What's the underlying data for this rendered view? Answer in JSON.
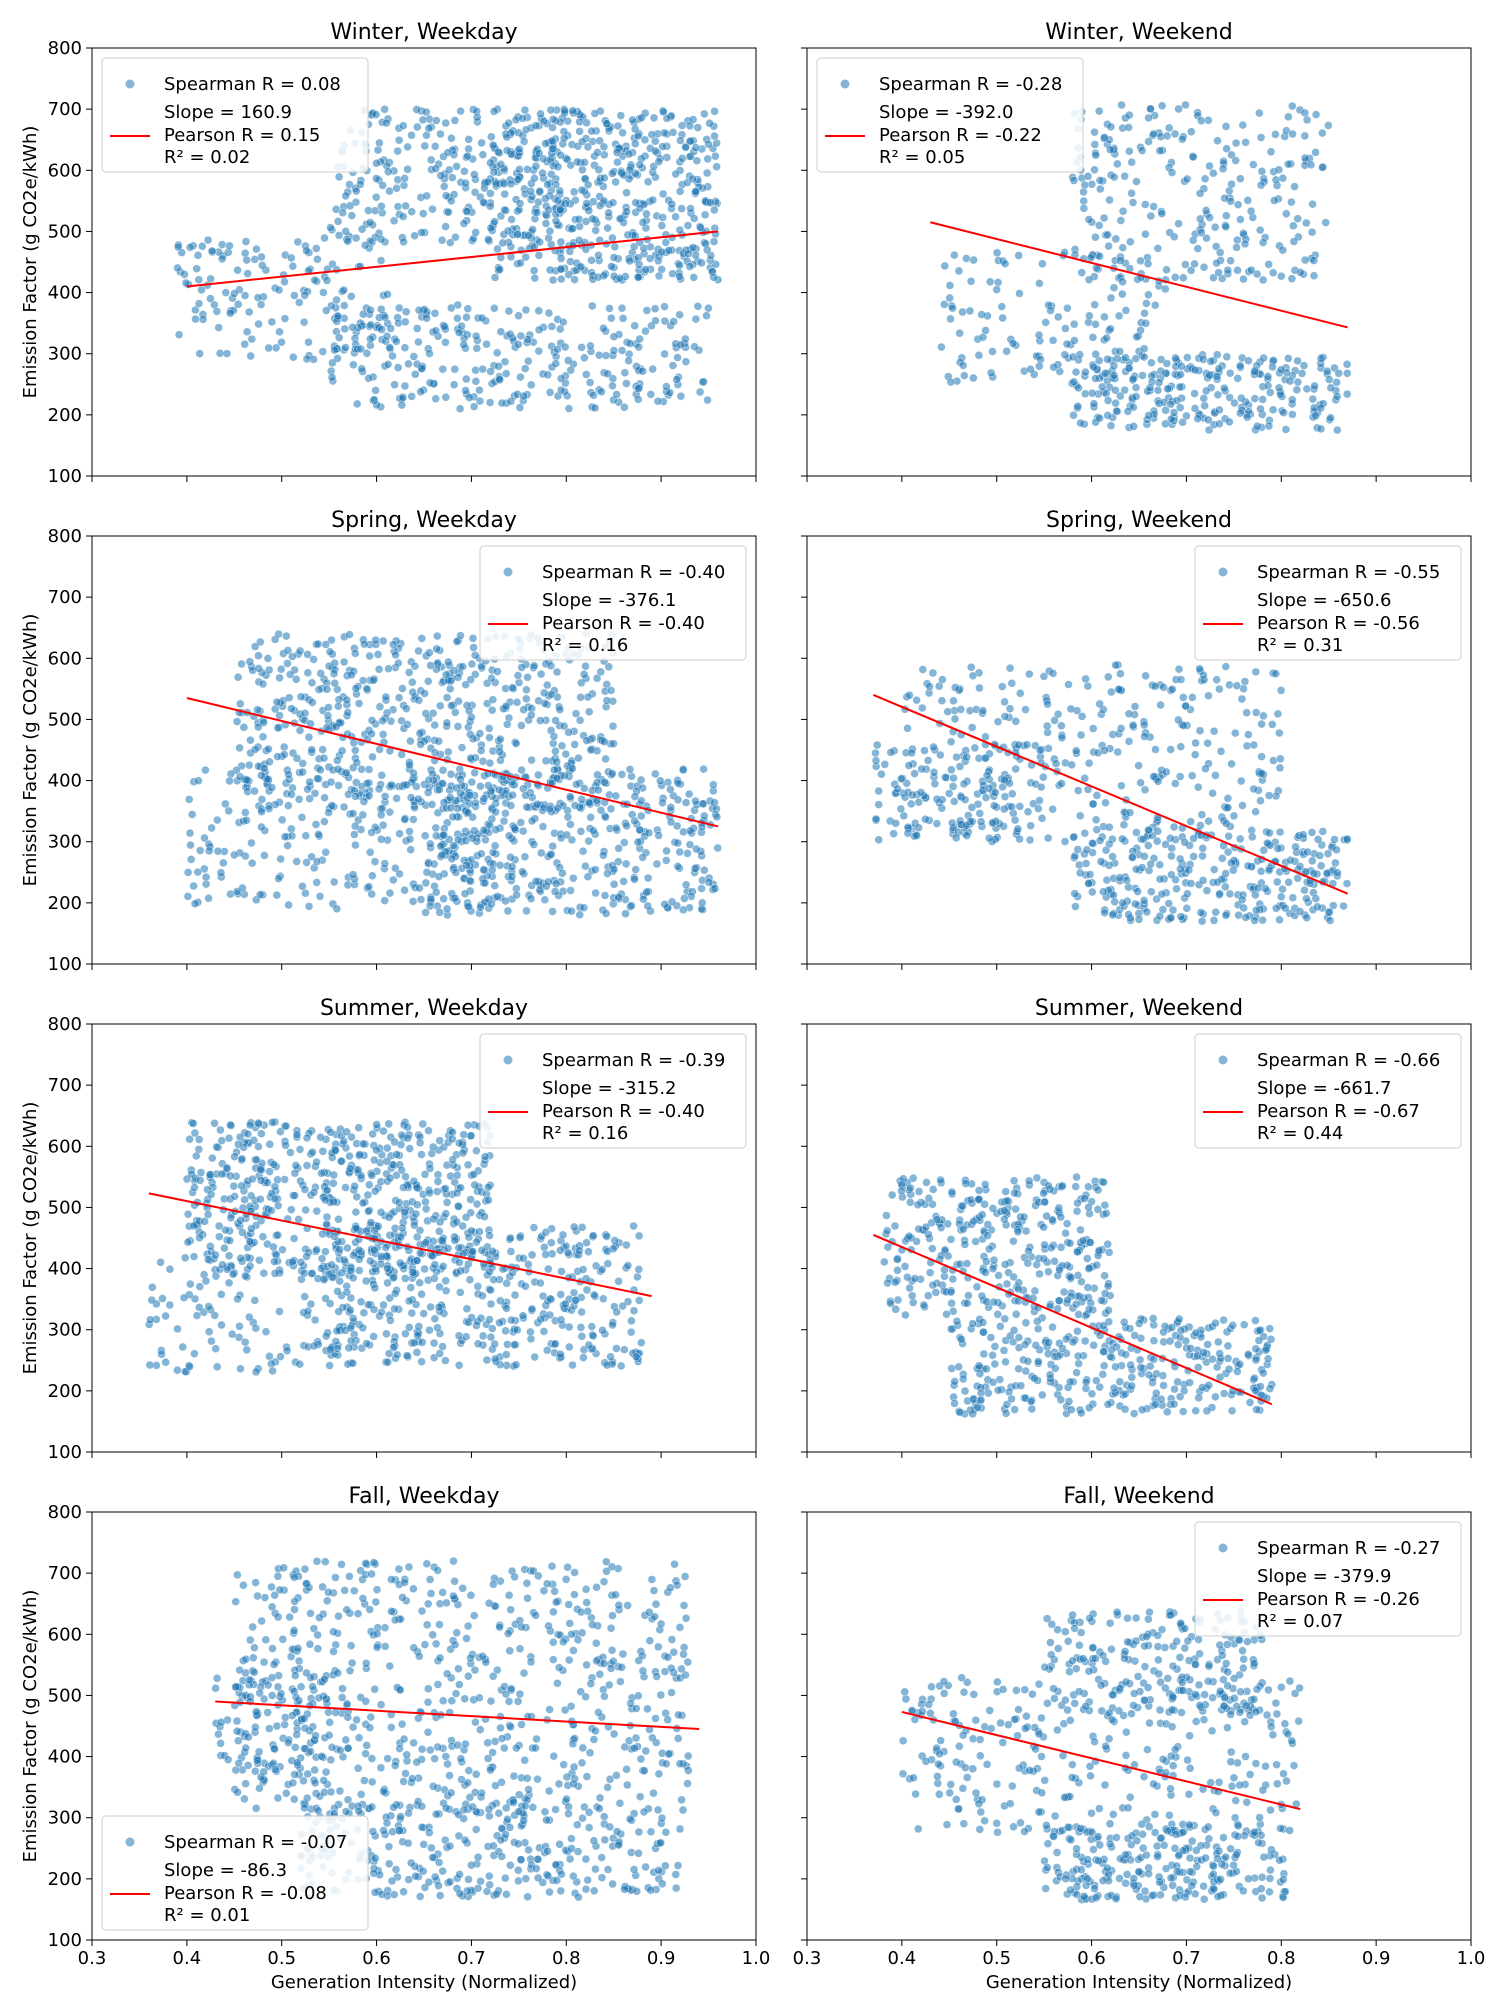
{
  "figure": {
    "xlabel": "Generation Intensity (Normalized)",
    "ylabel": "Emission Factor (g CO2e/kWh)",
    "x_ticks": [
      "0.3",
      "0.4",
      "0.5",
      "0.6",
      "0.7",
      "0.8",
      "0.9",
      "1.0"
    ],
    "y_ticks": [
      "100",
      "200",
      "300",
      "400",
      "500",
      "600",
      "700",
      "800"
    ],
    "colors": {
      "scatter": "#1f77b4",
      "fit": "#ff0000"
    }
  },
  "chart_data": [
    {
      "type": "scatter",
      "title": "Winter, Weekday",
      "xlim": [
        0.3,
        1.0
      ],
      "ylim": [
        100,
        800
      ],
      "legend": {
        "placement": "top-left",
        "spearman": "Spearman R = 0.08",
        "slope": "Slope = 160.9",
        "pearson": "Pearson R = 0.15",
        "r2": "R² = 0.02"
      },
      "fit": {
        "x": [
          0.4,
          0.96
        ],
        "y": [
          410,
          500
        ]
      },
      "point_clouds": [
        {
          "x_range": [
            0.72,
            0.96
          ],
          "y_range": [
            420,
            700
          ],
          "n": 500
        },
        {
          "x_range": [
            0.55,
            0.8
          ],
          "y_range": [
            480,
            700
          ],
          "n": 250
        },
        {
          "x_range": [
            0.55,
            0.95
          ],
          "y_range": [
            210,
            380
          ],
          "n": 300
        },
        {
          "x_range": [
            0.39,
            0.62
          ],
          "y_range": [
            290,
            490
          ],
          "n": 150
        }
      ]
    },
    {
      "type": "scatter",
      "title": "Winter, Weekend",
      "xlim": [
        0.3,
        1.0
      ],
      "ylim": [
        100,
        800
      ],
      "legend": {
        "placement": "top-left",
        "spearman": "Spearman R = -0.28",
        "slope": "Slope = -392.0",
        "pearson": "Pearson R = -0.22",
        "r2": "R² = 0.05"
      },
      "fit": {
        "x": [
          0.43,
          0.87
        ],
        "y": [
          515,
          343
        ]
      },
      "point_clouds": [
        {
          "x_range": [
            0.58,
            0.85
          ],
          "y_range": [
            420,
            710
          ],
          "n": 260
        },
        {
          "x_range": [
            0.44,
            0.68
          ],
          "y_range": [
            250,
            470
          ],
          "n": 140
        },
        {
          "x_range": [
            0.58,
            0.87
          ],
          "y_range": [
            175,
            300
          ],
          "n": 260
        }
      ]
    },
    {
      "type": "scatter",
      "title": "Spring, Weekday",
      "xlim": [
        0.3,
        1.0
      ],
      "ylim": [
        100,
        800
      ],
      "legend": {
        "placement": "top-right",
        "spearman": "Spearman R = -0.40",
        "slope": "Slope = -376.1",
        "pearson": "Pearson R = -0.40",
        "r2": "R² = 0.16"
      },
      "fit": {
        "x": [
          0.4,
          0.96
        ],
        "y": [
          535,
          325
        ]
      },
      "point_clouds": [
        {
          "x_range": [
            0.45,
            0.85
          ],
          "y_range": [
            350,
            640
          ],
          "n": 600
        },
        {
          "x_range": [
            0.65,
            0.96
          ],
          "y_range": [
            180,
            420
          ],
          "n": 400
        },
        {
          "x_range": [
            0.4,
            0.75
          ],
          "y_range": [
            190,
            420
          ],
          "n": 250
        }
      ]
    },
    {
      "type": "scatter",
      "title": "Spring, Weekend",
      "xlim": [
        0.3,
        1.0
      ],
      "ylim": [
        100,
        800
      ],
      "legend": {
        "placement": "top-right",
        "spearman": "Spearman R = -0.55",
        "slope": "Slope = -650.6",
        "pearson": "Pearson R = -0.56",
        "r2": "R² = 0.31"
      },
      "fit": {
        "x": [
          0.37,
          0.87
        ],
        "y": [
          540,
          215
        ]
      },
      "point_clouds": [
        {
          "x_range": [
            0.4,
            0.8
          ],
          "y_range": [
            300,
            590
          ],
          "n": 350
        },
        {
          "x_range": [
            0.58,
            0.87
          ],
          "y_range": [
            170,
            320
          ],
          "n": 300
        },
        {
          "x_range": [
            0.37,
            0.55
          ],
          "y_range": [
            300,
            460
          ],
          "n": 100
        }
      ]
    },
    {
      "type": "scatter",
      "title": "Summer, Weekday",
      "xlim": [
        0.3,
        1.0
      ],
      "ylim": [
        100,
        800
      ],
      "legend": {
        "placement": "top-right",
        "spearman": "Spearman R = -0.39",
        "slope": "Slope = -315.2",
        "pearson": "Pearson R = -0.40",
        "r2": "R² = 0.16"
      },
      "fit": {
        "x": [
          0.36,
          0.89
        ],
        "y": [
          523,
          355
        ]
      },
      "point_clouds": [
        {
          "x_range": [
            0.4,
            0.72
          ],
          "y_range": [
            380,
            640
          ],
          "n": 600
        },
        {
          "x_range": [
            0.55,
            0.88
          ],
          "y_range": [
            240,
            470
          ],
          "n": 400
        },
        {
          "x_range": [
            0.36,
            0.58
          ],
          "y_range": [
            230,
            420
          ],
          "n": 120
        }
      ]
    },
    {
      "type": "scatter",
      "title": "Summer, Weekend",
      "xlim": [
        0.3,
        1.0
      ],
      "ylim": [
        100,
        800
      ],
      "legend": {
        "placement": "top-right",
        "spearman": "Spearman R = -0.66",
        "slope": "Slope = -661.7",
        "pearson": "Pearson R = -0.67",
        "r2": "R² = 0.44"
      },
      "fit": {
        "x": [
          0.37,
          0.79
        ],
        "y": [
          455,
          178
        ]
      },
      "point_clouds": [
        {
          "x_range": [
            0.38,
            0.62
          ],
          "y_range": [
            320,
            550
          ],
          "n": 350
        },
        {
          "x_range": [
            0.45,
            0.79
          ],
          "y_range": [
            160,
            320
          ],
          "n": 350
        }
      ]
    },
    {
      "type": "scatter",
      "title": "Fall, Weekday",
      "xlim": [
        0.3,
        1.0
      ],
      "ylim": [
        100,
        800
      ],
      "legend": {
        "placement": "bottom-left",
        "spearman": "Spearman R = -0.07",
        "slope": "Slope = -86.3",
        "pearson": "Pearson R = -0.08",
        "r2": "R² = 0.01"
      },
      "fit": {
        "x": [
          0.43,
          0.94
        ],
        "y": [
          490,
          445
        ]
      },
      "point_clouds": [
        {
          "x_range": [
            0.45,
            0.93
          ],
          "y_range": [
            300,
            720
          ],
          "n": 700
        },
        {
          "x_range": [
            0.52,
            0.92
          ],
          "y_range": [
            170,
            320
          ],
          "n": 300
        },
        {
          "x_range": [
            0.43,
            0.55
          ],
          "y_range": [
            370,
            540
          ],
          "n": 80
        }
      ]
    },
    {
      "type": "scatter",
      "title": "Fall, Weekend",
      "xlim": [
        0.3,
        1.0
      ],
      "ylim": [
        100,
        800
      ],
      "legend": {
        "placement": "top-right",
        "spearman": "Spearman R = -0.27",
        "slope": "Slope = -379.9",
        "pearson": "Pearson R = -0.26",
        "r2": "R² = 0.07"
      },
      "fit": {
        "x": [
          0.4,
          0.82
        ],
        "y": [
          473,
          314
        ]
      },
      "point_clouds": [
        {
          "x_range": [
            0.55,
            0.78
          ],
          "y_range": [
            470,
            640
          ],
          "n": 200
        },
        {
          "x_range": [
            0.4,
            0.82
          ],
          "y_range": [
            270,
            530
          ],
          "n": 300
        },
        {
          "x_range": [
            0.55,
            0.81
          ],
          "y_range": [
            165,
            290
          ],
          "n": 250
        }
      ]
    }
  ]
}
